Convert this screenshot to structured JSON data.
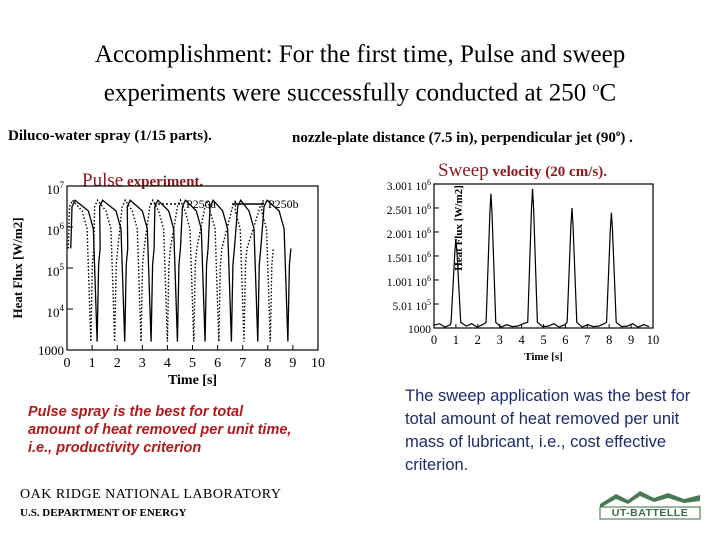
{
  "slide": {
    "title_line1": "Accomplishment: For the first time, Pulse and sweep",
    "title_line2_pre": "experiments were successfully conducted at 250 ",
    "title_sup": "o",
    "title_line2_post": "C",
    "left_sub": "Diluco-water spray (1/15 parts).",
    "right_sub_pre": "nozzle-plate distance (7.5 in), perpendicular jet (90",
    "right_sub_sup": "o",
    "right_sub_post": ") .",
    "pulse_caption_big": "Pulse",
    "pulse_caption_small": " experiment.",
    "sweep_caption_big": "Sweep",
    "sweep_caption_small": " velocity (20 cm/s).",
    "red_note": "Pulse spray is the best for total amount of heat removed per unit time, i.e., productivity criterion",
    "blue_note": "The sweep application was the best for total amount of heat removed per unit mass of lubricant, i.e., cost effective criterion.",
    "ornl_line": "OAK RIDGE NATIONAL LABORATORY",
    "doe_line": "U.S. DEPARTMENT OF ENERGY",
    "logo_text": "UT-BATTELLE",
    "colors": {
      "red_text": "#b11a1a",
      "blue_text": "#1d2a6e",
      "caption_red": "#8b1a1a"
    }
  },
  "chart_data": [
    {
      "type": "line",
      "title": "",
      "xlabel": "Time [s]",
      "ylabel": "Heat Flux [W/m2]",
      "xlim": [
        0,
        10
      ],
      "ylim": [
        1000,
        10000000
      ],
      "yscale": "log",
      "xticks": [
        "0",
        "1",
        "2",
        "3",
        "4",
        "5",
        "6",
        "7",
        "8",
        "9",
        "10"
      ],
      "yticks": [
        "1000",
        "10^4",
        "10^5",
        "10^6",
        "10^7"
      ],
      "legend": "top-right",
      "series": [
        {
          "name": "P250a",
          "style": "dotted",
          "pulses": [
            [
              0.1,
              0.95
            ],
            [
              1.1,
              1.9
            ],
            [
              2.2,
              2.95
            ],
            [
              3.3,
              4.0
            ],
            [
              4.4,
              5.05
            ],
            [
              5.5,
              6.05
            ],
            [
              6.6,
              7.05
            ],
            [
              7.7,
              8.1
            ]
          ]
        },
        {
          "name": "P250b",
          "style": "solid",
          "pulses": [
            [
              0.2,
              1.2
            ],
            [
              1.3,
              2.3
            ],
            [
              2.4,
              3.35
            ],
            [
              3.5,
              4.4
            ],
            [
              4.6,
              5.5
            ],
            [
              5.7,
              6.55
            ],
            [
              6.8,
              7.6
            ],
            [
              7.85,
              8.8
            ]
          ]
        }
      ]
    },
    {
      "type": "line",
      "title": "",
      "xlabel": "Time [s]",
      "ylabel": "Heat Flux [W/m2]",
      "xlim": [
        0,
        10
      ],
      "ylim": [
        1000,
        3000000
      ],
      "xticks": [
        "0",
        "1",
        "2",
        "3",
        "4",
        "5",
        "6",
        "7",
        "8",
        "9",
        "10"
      ],
      "yticks": [
        "1000",
        "5.01 10^5",
        "1.001 10^6",
        "1.501 10^6",
        "2.001 10^6",
        "2.501 10^6",
        "3.001 10^6"
      ],
      "series": [
        {
          "name": "",
          "peaks_x": [
            1.0,
            2.6,
            4.5,
            6.3,
            8.1
          ],
          "peaks_y": [
            1850000,
            2800000,
            2900000,
            2500000,
            2400000
          ]
        }
      ]
    }
  ]
}
